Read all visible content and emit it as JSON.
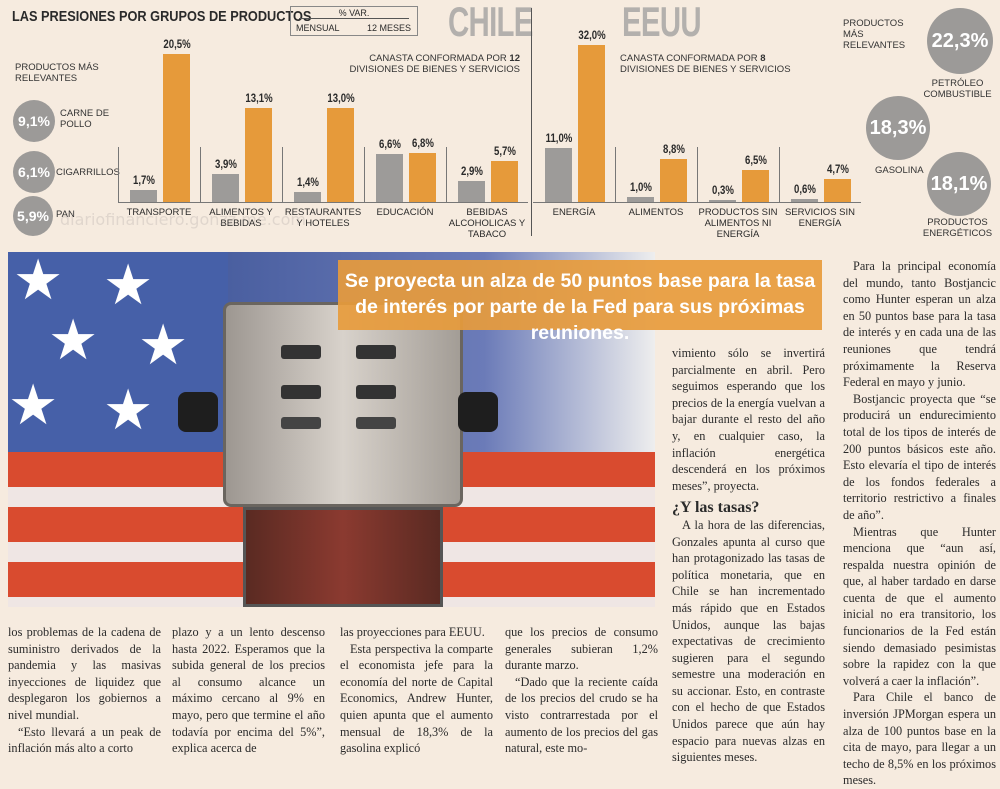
{
  "infographic": {
    "title": "LAS PRESIONES POR GRUPOS DE PRODUCTOS",
    "legend": {
      "header": "% VAR.",
      "monthly": "MENSUAL",
      "yearly": "12 MESES"
    },
    "colors": {
      "monthly": "#9d9b99",
      "yearly": "#e69a3a"
    },
    "watermark": "diariofinanciero.gonzz.me.com",
    "chile": {
      "label": "CHILE",
      "note_pre": "CANASTA CONFORMADA POR ",
      "note_num": "12",
      "note_post": " DIVISIONES DE BIENES Y SERVICIOS",
      "products_label": "PRODUCTOS MÁS RELEVANTES",
      "products": [
        {
          "value": "9,1%",
          "name": "CARNE DE POLLO"
        },
        {
          "value": "6,1%",
          "name": "CIGARRILLOS"
        },
        {
          "value": "5,9%",
          "name": "PAN"
        }
      ]
    },
    "eeuu": {
      "label": "EEUU",
      "note_pre": "CANASTA CONFORMADA POR ",
      "note_num": "8",
      "note_post": " DIVISIONES DE BIENES Y SERVICIOS",
      "products_label": "PRODUCTOS MÁS RELEVANTES",
      "products": [
        {
          "value": "22,3%",
          "name": "PETRÓLEO COMBUSTIBLE"
        },
        {
          "value": "18,3%",
          "name": "GASOLINA"
        },
        {
          "value": "18,1%",
          "name": "PRODUCTOS ENERGÉTICOS"
        }
      ]
    }
  },
  "chart_data": [
    {
      "type": "bar",
      "title": "CHILE",
      "categories": [
        "TRANSPORTE",
        "ALIMENTOS Y BEBIDAS",
        "RESTAURANTES Y HOTELES",
        "EDUCACIÓN",
        "BEBIDAS ALCOHOLICAS Y TABACO"
      ],
      "series": [
        {
          "name": "MENSUAL",
          "values": [
            1.7,
            3.9,
            1.4,
            6.6,
            2.9
          ],
          "labels": [
            "1,7%",
            "3,9%",
            "1,4%",
            "6,6%",
            "2,9%"
          ]
        },
        {
          "name": "12 MESES",
          "values": [
            20.5,
            13.1,
            13.0,
            6.8,
            5.7
          ],
          "labels": [
            "20,5%",
            "13,1%",
            "13,0%",
            "6,8%",
            "5,7%"
          ]
        }
      ]
    },
    {
      "type": "bar",
      "title": "EEUU",
      "categories": [
        "ENERGÍA",
        "ALIMENTOS",
        "PRODUCTOS SIN ALIMENTOS NI ENERGÍA",
        "SERVICIOS SIN ENERGÍA"
      ],
      "series": [
        {
          "name": "MENSUAL",
          "values": [
            11.0,
            1.0,
            0.3,
            0.6
          ],
          "labels": [
            "11,0%",
            "1,0%",
            "0,3%",
            "0,6%"
          ]
        },
        {
          "name": "12 MESES",
          "values": [
            32.0,
            8.8,
            6.5,
            4.7
          ],
          "labels": [
            "32,0%",
            "8,8%",
            "6,5%",
            "4,7%"
          ]
        }
      ]
    }
  ],
  "headline": "Se proyecta un alza de 50 puntos base para la tasa de interés por parte de la Fed para sus próximas reuniones.",
  "columns": [
    [
      "los problemas de la cadena de suministro derivados de la pandemia y las masivas inyecciones de liquidez que desplegaron los gobiernos a nivel mundial.",
      "“Esto llevará a un peak de inflación más alto a corto"
    ],
    [
      "plazo y a un lento descenso hasta 2022. Esperamos que la subida general de los precios al consumo alcance un máximo cercano al 9% en mayo, pero que termine el año todavía por encima del 5%”, explica acerca de"
    ],
    [
      "las proyecciones para EEUU.",
      "Esta perspectiva la comparte el economista jefe para la economía del norte de Capital Economics, Andrew Hunter, quien apunta que el aumento mensual de 18,3% de la gasolina explicó"
    ],
    [
      "que los precios de consumo generales subieran 1,2% durante marzo.",
      "“Dado que la reciente caída de los precios del crudo se ha visto contrarrestada por el aumento de los precios del gas natural, este mo-"
    ],
    [
      "vimiento sólo se invertirá parcialmente en abril. Pero seguimos esperando que los precios de la energía vuelvan a bajar durante el resto del año y, en cualquier caso, la inflación energética descenderá en los próximos meses”, proyecta."
    ],
    [
      "Para la principal economía del mundo, tanto Bostjancic como Hunter esperan un alza en 50 puntos base para la tasa de interés y en cada una de las reuniones que tendrá próximamente la Reserva Federal en mayo y junio.",
      "Bostjancic proyecta que “se producirá un endurecimiento total de los tipos de interés de 200 puntos básicos este año. Esto elevaría el tipo de interés de los fondos federales a territorio restrictivo a finales de año”.",
      "Mientras que Hunter menciona que “aun así, respalda nuestra opinión de que, al haber tardado en darse cuenta de que el aumento inicial no era transitorio, los funcionarios de la Fed están siendo demasiado pesimistas sobre la rapidez con la que volverá a caer la inflación”.",
      "Para Chile el banco de inversión JPMorgan espera un alza de 100 puntos base en la cita de mayo, para llegar a un techo de 8,5% en los próximos meses."
    ]
  ],
  "subheading": "¿Y las tasas?",
  "subsection": [
    "A la hora de las diferencias, Gonzales apunta al curso que han protagonizado las tasas de política monetaria, que en Chile se han incrementado más rápido que en Estados Unidos, aunque las bajas expectativas de crecimiento sugieren para el segundo semestre una moderación en su accionar. Esto, en contraste con el hecho de que Estados Unidos parece que aún hay espacio para nuevas alzas en siguientes meses."
  ]
}
